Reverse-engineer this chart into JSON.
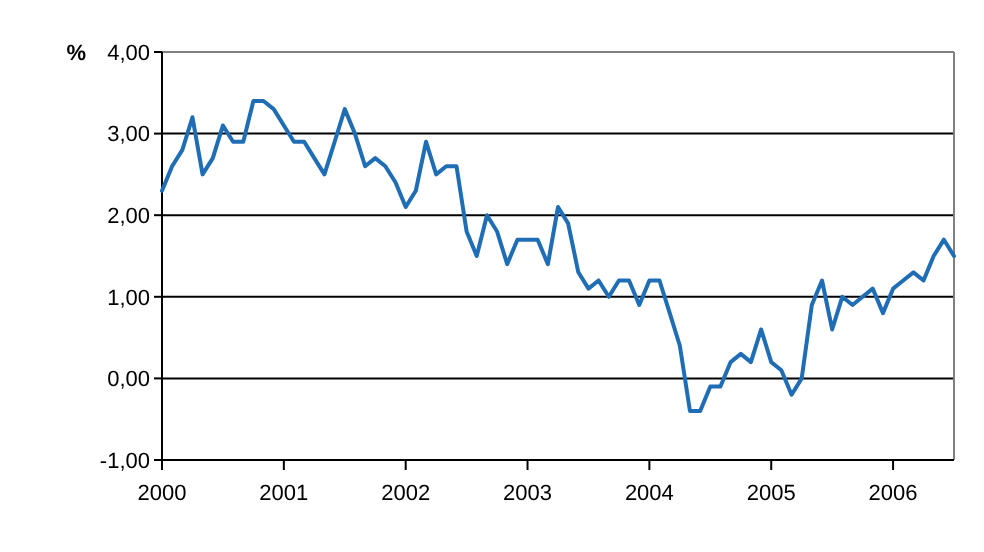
{
  "chart_data": {
    "type": "line",
    "ylabel": "%",
    "xlim": [
      2000,
      2006.5
    ],
    "xticks": [
      2000,
      2001,
      2002,
      2003,
      2004,
      2005,
      2006
    ],
    "ylim": [
      -1,
      4
    ],
    "yticks": [
      {
        "value": -1,
        "label": "-1,00"
      },
      {
        "value": 0,
        "label": "0,00"
      },
      {
        "value": 1,
        "label": "1,00"
      },
      {
        "value": 2,
        "label": "2,00"
      },
      {
        "value": 3,
        "label": "3,00"
      },
      {
        "value": 4,
        "label": "4,00"
      }
    ],
    "grid": "y",
    "marker": "none",
    "line_style": "solid",
    "series": [
      {
        "color": "#1f6db5",
        "x": [
          2000,
          2000.083,
          2000.167,
          2000.25,
          2000.333,
          2000.417,
          2000.5,
          2000.583,
          2000.667,
          2000.75,
          2000.833,
          2000.917,
          2001,
          2001.083,
          2001.167,
          2001.25,
          2001.333,
          2001.417,
          2001.5,
          2001.583,
          2001.667,
          2001.75,
          2001.833,
          2001.917,
          2002,
          2002.083,
          2002.167,
          2002.25,
          2002.333,
          2002.417,
          2002.5,
          2002.583,
          2002.667,
          2002.75,
          2002.833,
          2002.917,
          2003,
          2003.083,
          2003.167,
          2003.25,
          2003.333,
          2003.417,
          2003.5,
          2003.583,
          2003.667,
          2003.75,
          2003.833,
          2003.917,
          2004,
          2004.083,
          2004.167,
          2004.25,
          2004.333,
          2004.417,
          2004.5,
          2004.583,
          2004.667,
          2004.75,
          2004.833,
          2004.917,
          2005,
          2005.083,
          2005.167,
          2005.25,
          2005.333,
          2005.417,
          2005.5,
          2005.583,
          2005.667,
          2005.75,
          2005.833,
          2005.917,
          2006,
          2006.083,
          2006.167,
          2006.25,
          2006.333,
          2006.417,
          2006.5
        ],
        "values": [
          2.3,
          2.6,
          2.8,
          3.2,
          2.5,
          2.7,
          3.1,
          2.9,
          2.9,
          3.4,
          3.4,
          3.3,
          3.1,
          2.9,
          2.9,
          2.7,
          2.5,
          2.9,
          3.3,
          3.0,
          2.6,
          2.7,
          2.6,
          2.4,
          2.1,
          2.3,
          2.9,
          2.5,
          2.6,
          2.6,
          1.8,
          1.5,
          2.0,
          1.8,
          1.4,
          1.7,
          1.7,
          1.7,
          1.4,
          2.1,
          1.9,
          1.3,
          1.1,
          1.2,
          1.0,
          1.2,
          1.2,
          0.9,
          1.2,
          1.2,
          0.8,
          0.4,
          -0.4,
          -0.4,
          -0.1,
          -0.1,
          0.2,
          0.3,
          0.2,
          0.6,
          0.2,
          0.1,
          -0.2,
          0.0,
          0.9,
          1.2,
          0.6,
          1.0,
          0.9,
          1.0,
          1.1,
          0.8,
          1.1,
          1.2,
          1.3,
          1.2,
          1.5,
          1.7,
          1.5
        ]
      }
    ]
  }
}
